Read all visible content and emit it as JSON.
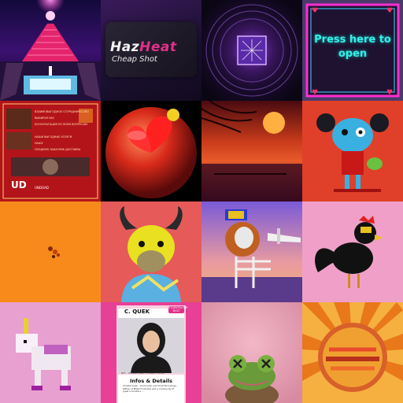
{
  "gallery": {
    "tiles": [
      {
        "index": 1,
        "subject": "neon stairway temple"
      },
      {
        "index": 2,
        "subject": "HazHeat logo card",
        "title_white": "Haz",
        "title_pink": "Heat",
        "subtitle": "Cheap Shot"
      },
      {
        "index": 3,
        "subject": "glowing purple portal"
      },
      {
        "index": 4,
        "subject": "neon box",
        "text": "Press here to open"
      },
      {
        "index": 5,
        "subject": "red poster",
        "lines": [
          "ВЗАИМОВЫГОДНОЕ СОТРУДНИЧЕСТВО",
          "ВЫБИРАЯ НАС",
          "КОНСУЛЬТАЦИЯ ПО ВСЕМ ВОПРОСАМ",
          "НАШИ ВЫГОДНЫЕ УСЛУГИ",
          "НАШУ",
          "СВОДНУЮ ЗАКАЗЧИК ДОСТАВКА"
        ],
        "logo": "UD",
        "brand": "UNDOAD"
      },
      {
        "index": 6,
        "subject": "glossy red sphere"
      },
      {
        "index": 7,
        "subject": "sunset palm beach"
      },
      {
        "index": 8,
        "subject": "blue zombie girl with frog"
      },
      {
        "index": 9,
        "subject": "small orange pixel creature"
      },
      {
        "index": 10,
        "subject": "yellow bull in hoodie"
      },
      {
        "index": 11,
        "subject": "skeleton lion with airplane"
      },
      {
        "index": 12,
        "subject": "black rooster on pink"
      },
      {
        "index": 13,
        "subject": "voxel unicorn"
      },
      {
        "index": 14,
        "subject": "profile card",
        "name": "C. QUEK",
        "badge": "STORYTELLER BOLT",
        "info_title": "Infos & Details",
        "info_body": "Christel Quek - Co-founder and Chief Technology Officer of BOLD Fundraise and a community of great innovators ...",
        "caption": "NFT - Christel Quek / Forward / Artist"
      },
      {
        "index": 15,
        "subject": "green frog with x eyes"
      },
      {
        "index": 16,
        "subject": "sunburst stamp"
      }
    ]
  }
}
